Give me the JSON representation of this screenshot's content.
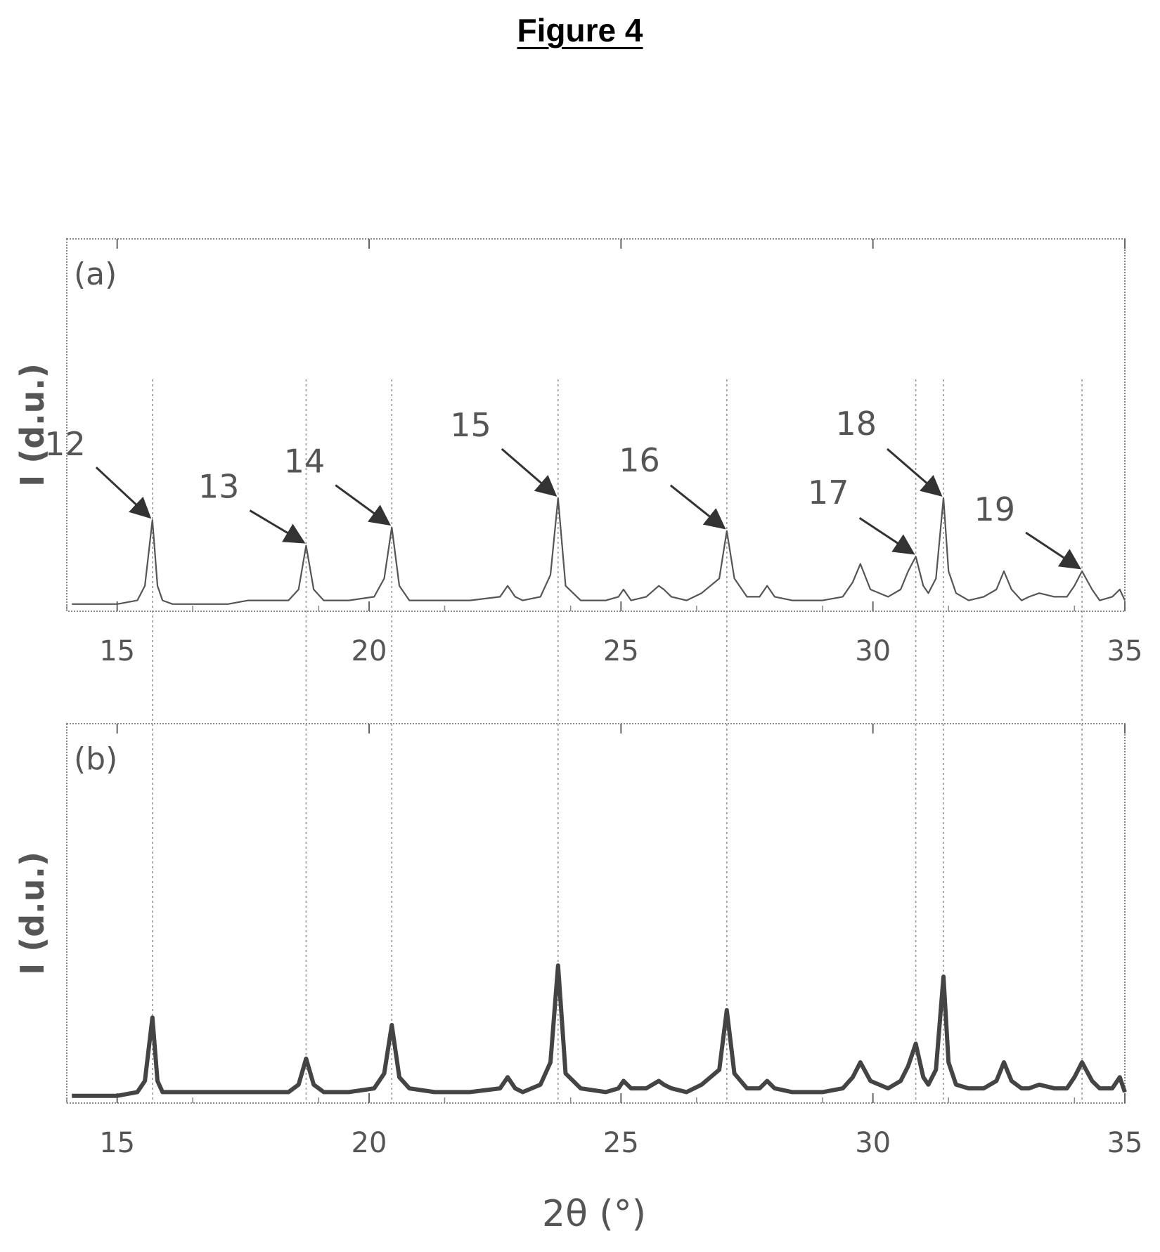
{
  "figure_title": "Figure 4",
  "chart_data": [
    {
      "type": "line",
      "panel_label": "(a)",
      "xlabel": "",
      "ylabel": "I (d.u.)",
      "xlim": [
        14,
        35
      ],
      "xticks": [
        15,
        20,
        25,
        30,
        35
      ],
      "grid": false,
      "ylim": [
        0,
        1
      ],
      "series": [
        {
          "x": [
            14.1,
            14.5,
            15.0,
            15.4,
            15.55,
            15.7,
            15.8,
            15.9,
            16.1,
            16.6,
            17.2,
            17.6,
            18.0,
            18.4,
            18.6,
            18.75,
            18.9,
            19.1,
            19.6,
            20.1,
            20.3,
            20.45,
            20.6,
            20.8,
            21.3,
            22.0,
            22.6,
            22.75,
            22.9,
            23.05,
            23.4,
            23.6,
            23.75,
            23.9,
            24.2,
            24.7,
            24.95,
            25.05,
            25.2,
            25.5,
            25.75,
            25.85,
            26.0,
            26.3,
            26.6,
            26.95,
            27.1,
            27.25,
            27.5,
            27.75,
            27.9,
            28.05,
            28.4,
            29.0,
            29.4,
            29.6,
            29.75,
            29.95,
            30.3,
            30.55,
            30.7,
            30.85,
            31.0,
            31.1,
            31.25,
            31.4,
            31.5,
            31.65,
            31.9,
            32.2,
            32.45,
            32.6,
            32.75,
            32.95,
            33.1,
            33.3,
            33.6,
            33.85,
            34.0,
            34.15,
            34.35,
            34.5,
            34.75,
            34.9,
            35.0
          ],
          "y": [
            0.01,
            0.01,
            0.01,
            0.02,
            0.06,
            0.24,
            0.06,
            0.02,
            0.01,
            0.01,
            0.01,
            0.02,
            0.02,
            0.02,
            0.05,
            0.17,
            0.05,
            0.02,
            0.02,
            0.03,
            0.08,
            0.22,
            0.06,
            0.02,
            0.02,
            0.02,
            0.03,
            0.06,
            0.03,
            0.02,
            0.03,
            0.09,
            0.3,
            0.06,
            0.02,
            0.02,
            0.03,
            0.05,
            0.02,
            0.03,
            0.06,
            0.05,
            0.03,
            0.02,
            0.04,
            0.08,
            0.21,
            0.08,
            0.03,
            0.03,
            0.06,
            0.03,
            0.02,
            0.02,
            0.03,
            0.07,
            0.12,
            0.05,
            0.03,
            0.05,
            0.1,
            0.14,
            0.06,
            0.04,
            0.08,
            0.3,
            0.1,
            0.04,
            0.02,
            0.03,
            0.05,
            0.1,
            0.05,
            0.02,
            0.03,
            0.04,
            0.03,
            0.03,
            0.06,
            0.1,
            0.05,
            0.02,
            0.03,
            0.05,
            0.02
          ]
        }
      ],
      "annotations": [
        {
          "label": "12",
          "x": 15.7
        },
        {
          "label": "13",
          "x": 18.75
        },
        {
          "label": "14",
          "x": 20.45
        },
        {
          "label": "15",
          "x": 23.75
        },
        {
          "label": "16",
          "x": 27.1
        },
        {
          "label": "17",
          "x": 30.85
        },
        {
          "label": "18",
          "x": 31.4
        },
        {
          "label": "19",
          "x": 34.15
        }
      ]
    },
    {
      "type": "line",
      "panel_label": "(b)",
      "xlabel": "2θ (°)",
      "ylabel": "I (d.u.)",
      "xlim": [
        14,
        35
      ],
      "xticks": [
        15,
        20,
        25,
        30,
        35
      ],
      "grid": false,
      "ylim": [
        0,
        1
      ],
      "series": [
        {
          "x": [
            14.1,
            14.5,
            15.0,
            15.4,
            15.55,
            15.7,
            15.8,
            15.9,
            16.1,
            16.6,
            17.2,
            17.6,
            18.0,
            18.4,
            18.6,
            18.75,
            18.9,
            19.1,
            19.6,
            20.1,
            20.3,
            20.45,
            20.6,
            20.8,
            21.3,
            22.0,
            22.6,
            22.75,
            22.9,
            23.05,
            23.4,
            23.6,
            23.75,
            23.9,
            24.2,
            24.7,
            24.95,
            25.05,
            25.2,
            25.5,
            25.75,
            25.85,
            26.0,
            26.3,
            26.6,
            26.95,
            27.1,
            27.25,
            27.5,
            27.75,
            27.9,
            28.05,
            28.4,
            29.0,
            29.4,
            29.6,
            29.75,
            29.95,
            30.3,
            30.55,
            30.7,
            30.85,
            31.0,
            31.1,
            31.25,
            31.4,
            31.5,
            31.65,
            31.9,
            32.2,
            32.45,
            32.6,
            32.75,
            32.95,
            33.1,
            33.3,
            33.6,
            33.85,
            34.0,
            34.15,
            34.35,
            34.5,
            34.75,
            34.9,
            35.0
          ],
          "y": [
            0.01,
            0.01,
            0.01,
            0.02,
            0.05,
            0.22,
            0.05,
            0.02,
            0.02,
            0.02,
            0.02,
            0.02,
            0.02,
            0.02,
            0.04,
            0.11,
            0.04,
            0.02,
            0.02,
            0.03,
            0.07,
            0.2,
            0.06,
            0.03,
            0.02,
            0.02,
            0.03,
            0.06,
            0.03,
            0.02,
            0.04,
            0.1,
            0.36,
            0.07,
            0.03,
            0.02,
            0.03,
            0.05,
            0.03,
            0.03,
            0.05,
            0.04,
            0.03,
            0.02,
            0.04,
            0.08,
            0.24,
            0.07,
            0.03,
            0.03,
            0.05,
            0.03,
            0.02,
            0.02,
            0.03,
            0.06,
            0.1,
            0.05,
            0.03,
            0.05,
            0.09,
            0.15,
            0.06,
            0.04,
            0.08,
            0.33,
            0.1,
            0.04,
            0.03,
            0.03,
            0.05,
            0.1,
            0.05,
            0.03,
            0.03,
            0.04,
            0.03,
            0.03,
            0.06,
            0.1,
            0.05,
            0.03,
            0.03,
            0.06,
            0.02
          ]
        }
      ]
    }
  ]
}
